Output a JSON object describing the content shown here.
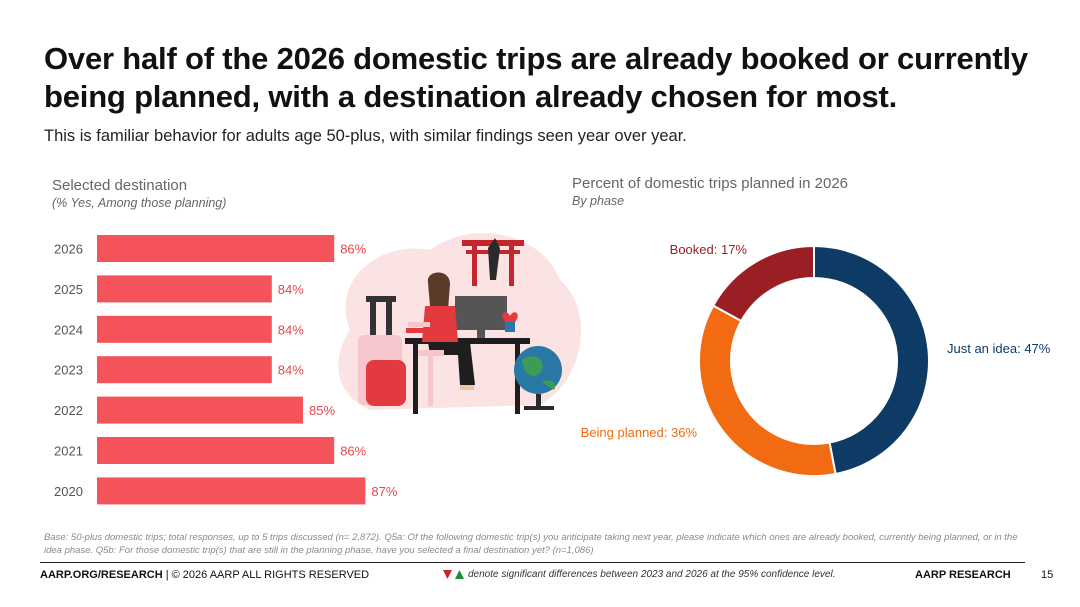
{
  "slide": {
    "title": "Over half of the 2026 domestic trips are already booked or currently being planned, with a destination already chosen for most.",
    "subtitle": "This is familiar behavior for adults age 50-plus, with similar findings seen year over year.",
    "page_number": "15"
  },
  "colors": {
    "bar": "#f4535a",
    "bar_label": "#e8454c",
    "idea": "#0e3a66",
    "planned": "#f26a12",
    "booked": "#9a1f24"
  },
  "chart_data": [
    {
      "type": "bar",
      "orientation": "horizontal",
      "title": "Selected destination",
      "subtitle": "(% Yes, Among those planning)",
      "categories": [
        "2026",
        "2025",
        "2024",
        "2023",
        "2022",
        "2021",
        "2020"
      ],
      "values": [
        86,
        84,
        84,
        84,
        85,
        86,
        87
      ],
      "value_labels": [
        "86%",
        "84%",
        "84%",
        "84%",
        "85%",
        "86%",
        "87%"
      ],
      "xlim": [
        80,
        88
      ],
      "grid": false
    },
    {
      "type": "pie",
      "style": "donut",
      "title": "Percent of domestic trips planned in 2026",
      "subtitle": "By phase",
      "slices": [
        {
          "name": "Just an idea",
          "value": 47,
          "label": "Just an idea: 47%"
        },
        {
          "name": "Being planned",
          "value": 36,
          "label": "Being planned: 36%"
        },
        {
          "name": "Booked",
          "value": 17,
          "label": "Booked: 17%"
        }
      ]
    }
  ],
  "footnote": {
    "base": "Base: 50-plus domestic trips; total responses, up to 5 trips discussed (n= 2,872). Q5a: Of the following domestic trip(s) you anticipate taking next year, please indicate which ones are already booked, currently being planned, or in the idea phase. Q5b: For those domestic trip(s) that are still in the planning phase, have you selected a final destination yet? (n=1,086)"
  },
  "footer": {
    "left_bold": "AARP.ORG/RESEARCH",
    "left_rest": " | © 2026 AARP ALL RIGHTS RESERVED",
    "significance": "denote significant differences between 2023 and 2026 at the 95% confidence level.",
    "brand": "AARP RESEARCH"
  }
}
